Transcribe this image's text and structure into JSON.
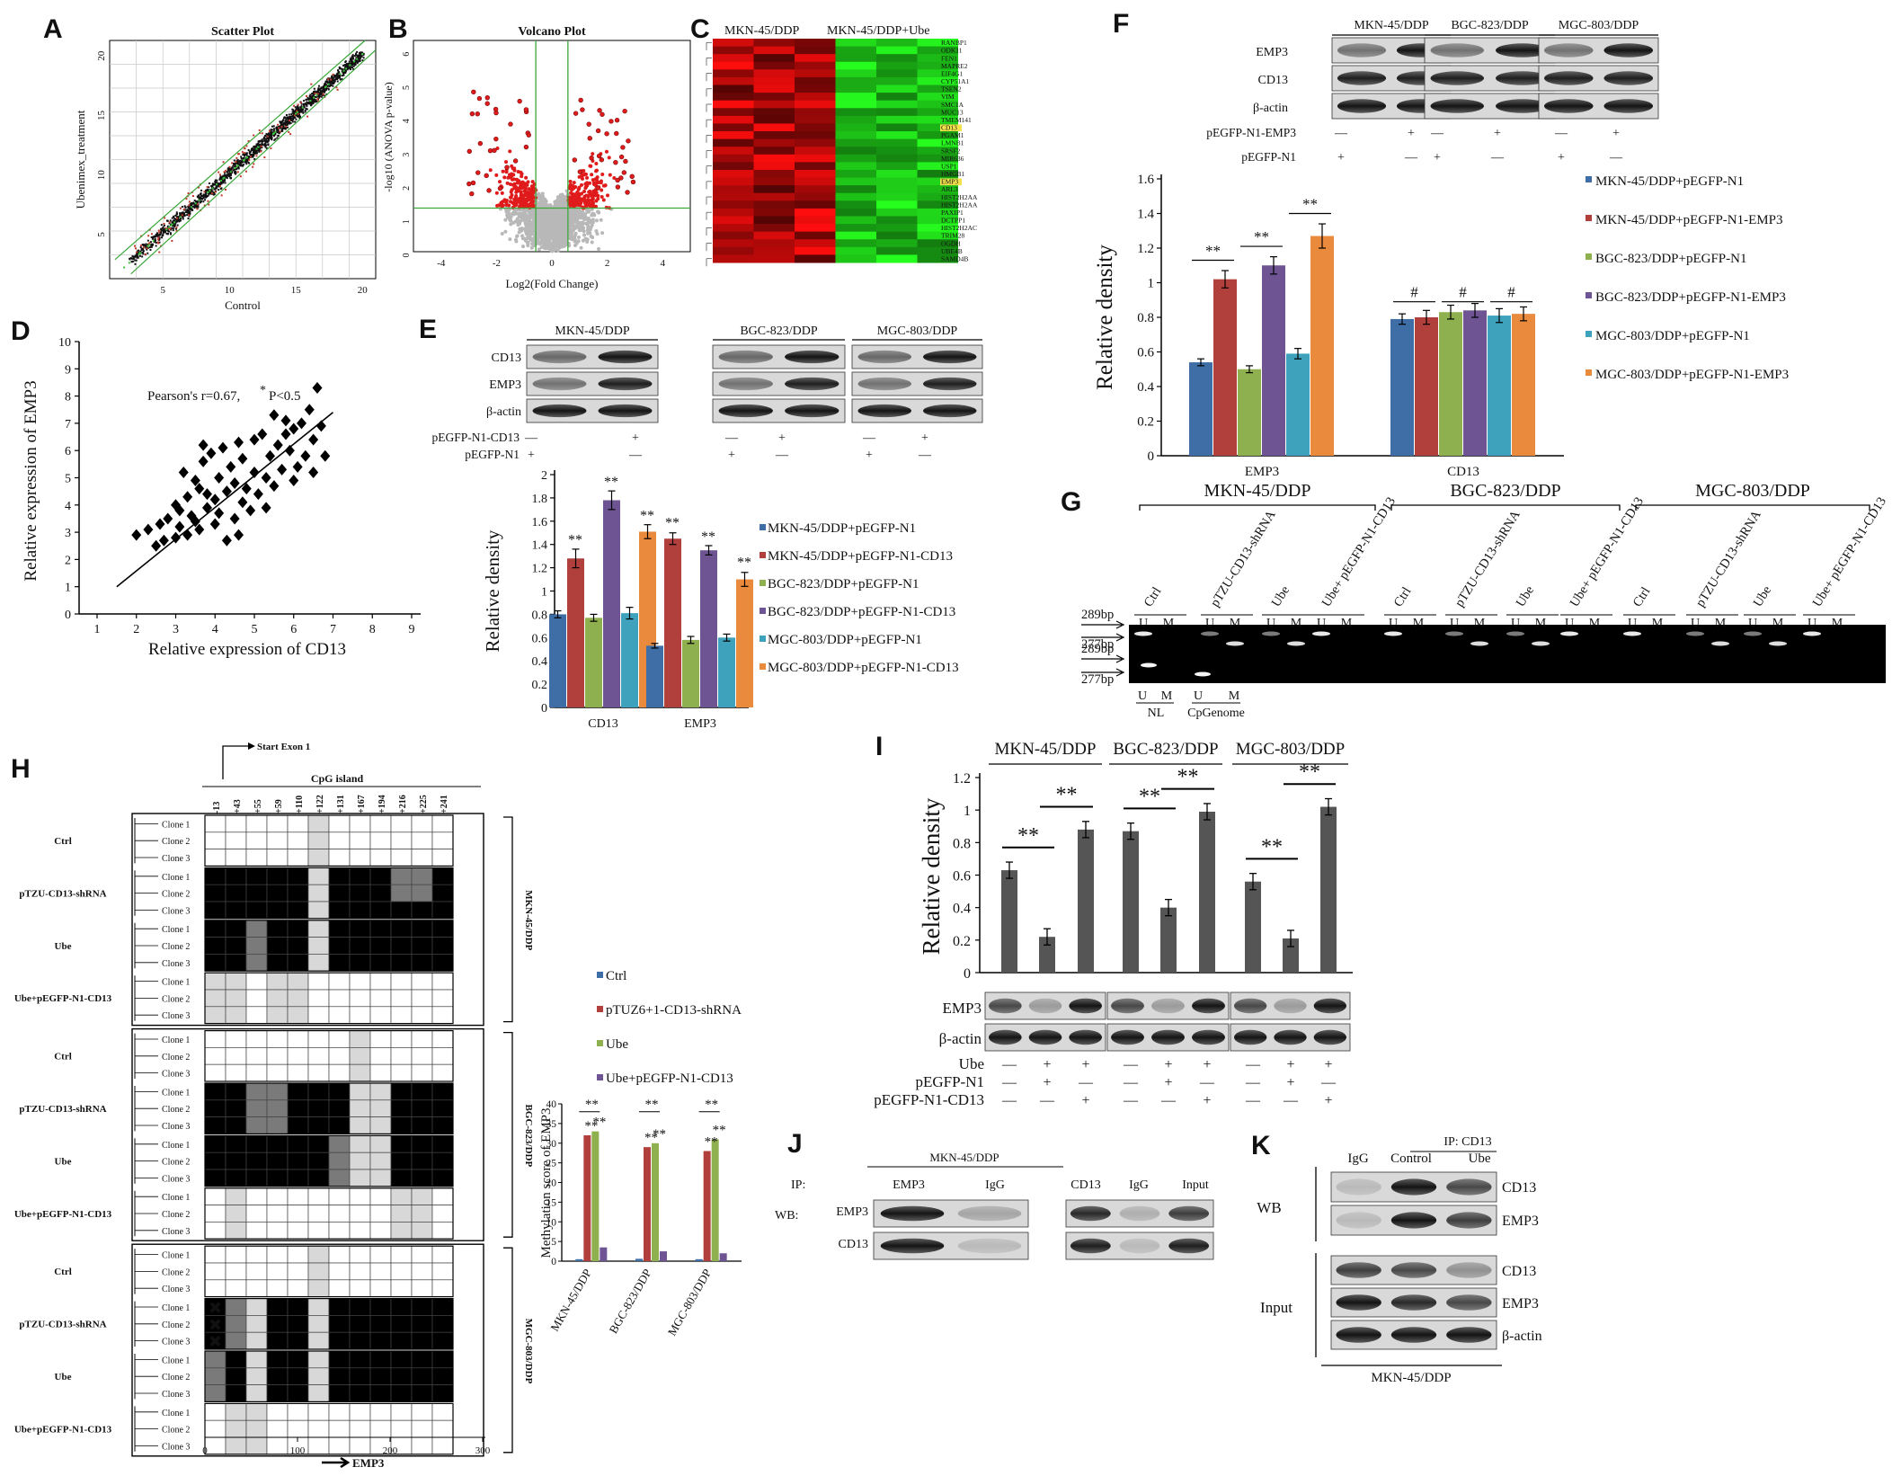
{
  "panels": {
    "A": {
      "letter": "A",
      "title": "Scatter Plot",
      "xlabel": "Control",
      "ylabel": "Ubenimex_treatment",
      "xticks": [
        "5",
        "10",
        "15",
        "20"
      ],
      "yticks": [
        "5",
        "10",
        "15",
        "20"
      ],
      "chart_data": {
        "type": "scatter",
        "xlim": [
          1,
          21
        ],
        "ylim": [
          1,
          21
        ],
        "description_points": "dense diagonal cloud along y=x with red outliers"
      }
    },
    "B": {
      "letter": "B",
      "title": "Volcano Plot",
      "xlabel": "Log2(Fold Change)",
      "ylabel": "-log10 (ANOVA p-value)",
      "xticks": [
        "-4",
        "-2",
        "0",
        "2",
        "4"
      ],
      "yticks": [
        "0",
        "1",
        "2",
        "3",
        "4",
        "5",
        "6"
      ],
      "chart_data": {
        "type": "scatter",
        "xlim": [
          -5,
          5
        ],
        "ylim": [
          0,
          6.3
        ],
        "thresholds": {
          "fc": [
            -0.58,
            0.58
          ],
          "p": 1.3
        }
      }
    },
    "C": {
      "letter": "C",
      "group1": "MKN-45/DDP",
      "group2": "MKN-45/DDP+Ube",
      "genes": [
        "RANBP1",
        "ODK11",
        "FEN1",
        "MAPRE2",
        "EIF4G1",
        "CYP51A1",
        "TSEN2",
        "VIM",
        "SMC1A",
        "MUC13",
        "TMEM141",
        "CD13",
        "PGAM1",
        "LMNB1",
        "SRSF2",
        "MIR636",
        "USP1",
        "HMGB1",
        "EMP3",
        "ARL3",
        "HIST2H2AA",
        "HIST2H2AA",
        "PAXIP1",
        "DCTPP1",
        "HIST2H2AC",
        "TRIM28",
        "OGDH",
        "UBE4B",
        "SAMD4B"
      ],
      "highlight": [
        "CD13",
        "EMP3"
      ]
    },
    "D": {
      "letter": "D",
      "annotation": "Pearson's r=0.67,",
      "annotation_star": "*",
      "annotation_p": "P<0.5",
      "xlabel": "Relative expression of  CD13",
      "ylabel": "Relative expression of  EMP3",
      "xticks": [
        "1",
        "2",
        "3",
        "4",
        "5",
        "6",
        "7",
        "8",
        "9"
      ],
      "yticks": [
        "0",
        "1",
        "2",
        "3",
        "4",
        "5",
        "6",
        "7",
        "8",
        "9",
        "10"
      ],
      "chart_data": {
        "type": "scatter",
        "xlim": [
          1,
          9
        ],
        "ylim": [
          0,
          10
        ],
        "x": [
          2.0,
          2.3,
          2.5,
          2.6,
          2.7,
          2.8,
          3.0,
          3.0,
          3.1,
          3.1,
          3.2,
          3.3,
          3.3,
          3.4,
          3.5,
          3.5,
          3.6,
          3.6,
          3.7,
          3.8,
          3.8,
          3.9,
          4.0,
          4.0,
          4.1,
          4.1,
          4.2,
          4.3,
          4.3,
          4.4,
          4.5,
          4.5,
          4.6,
          4.7,
          4.7,
          4.8,
          4.9,
          5.0,
          5.0,
          5.1,
          5.2,
          5.3,
          5.3,
          5.4,
          5.5,
          5.5,
          5.6,
          5.7,
          5.8,
          5.9,
          6.0,
          6.0,
          6.1,
          6.2,
          6.3,
          6.4,
          6.5,
          6.5,
          6.6,
          6.7,
          6.8,
          4.6,
          5.8,
          3.7
        ],
        "y": [
          2.9,
          3.1,
          2.5,
          3.3,
          2.7,
          3.5,
          4.0,
          2.8,
          3.8,
          3.2,
          5.2,
          2.9,
          4.3,
          3.6,
          4.9,
          3.4,
          4.6,
          3.1,
          5.6,
          3.9,
          4.4,
          5.9,
          4.2,
          3.3,
          5.0,
          3.7,
          6.1,
          4.5,
          2.7,
          5.4,
          3.5,
          4.8,
          6.3,
          4.1,
          5.7,
          4.6,
          3.8,
          5.2,
          6.4,
          4.4,
          6.6,
          5.0,
          3.9,
          5.8,
          7.3,
          4.7,
          6.2,
          5.3,
          7.1,
          6.0,
          4.9,
          6.8,
          5.4,
          7.0,
          5.8,
          7.5,
          6.4,
          5.2,
          8.3,
          6.9,
          5.8,
          2.9,
          6.6,
          6.2
        ],
        "fit": {
          "x": [
            1.5,
            7.0
          ],
          "y": [
            1.0,
            7.4
          ]
        }
      }
    },
    "E": {
      "letter": "E",
      "blot_groups": [
        "MKN-45/DDP",
        "BGC-823/DDP",
        "MGC-803/DDP"
      ],
      "blot_rows": [
        "CD13",
        "EMP3",
        "β-actin"
      ],
      "treat_rows": [
        {
          "label": "pEGFP-N1-CD13",
          "marks": [
            "—",
            "+",
            "—",
            "+",
            "—",
            "+"
          ]
        },
        {
          "label": "pEGFP-N1",
          "marks": [
            "+",
            "—",
            "+",
            "—",
            "+",
            "—"
          ]
        }
      ],
      "chart_data": {
        "type": "bar",
        "categories": [
          "CD13",
          "EMP3"
        ],
        "ylabel": "Relative density",
        "ylim": [
          0,
          2
        ],
        "yticks": [
          "0",
          "0.2",
          "0.4",
          "0.6",
          "0.8",
          "1",
          "1.2",
          "1.4",
          "1.6",
          "1.8",
          "2"
        ],
        "series": [
          {
            "name": "MKN-45/DDP+pEGFP-N1",
            "color": "#3f6ea6",
            "values": [
              0.8,
              0.53
            ],
            "err": [
              0.03,
              0.02
            ]
          },
          {
            "name": "MKN-45/DDP+pEGFP-N1-CD13",
            "color": "#b1403d",
            "values": [
              1.28,
              1.45
            ],
            "err": [
              0.08,
              0.05
            ]
          },
          {
            "name": "BGC-823/DDP+pEGFP-N1",
            "color": "#8fb04f",
            "values": [
              0.77,
              0.58
            ],
            "err": [
              0.03,
              0.03
            ]
          },
          {
            "name": "BGC-823/DDP+pEGFP-N1-CD13",
            "color": "#6f5494",
            "values": [
              1.78,
              1.35
            ],
            "err": [
              0.08,
              0.04
            ]
          },
          {
            "name": "MGC-803/DDP+pEGFP-N1",
            "color": "#3fa2bd",
            "values": [
              0.81,
              0.6
            ],
            "err": [
              0.05,
              0.03
            ]
          },
          {
            "name": "MGC-803/DDP+pEGFP-N1-CD13",
            "color": "#e98a3c",
            "values": [
              1.51,
              1.1
            ],
            "err": [
              0.06,
              0.06
            ]
          }
        ],
        "sig": [
          "**",
          "**"
        ]
      }
    },
    "F": {
      "letter": "F",
      "blot_groups": [
        "MKN-45/DDP",
        "BGC-823/DDP",
        "MGC-803/DDP"
      ],
      "blot_rows": [
        "EMP3",
        "CD13",
        "β-actin"
      ],
      "treat_rows": [
        {
          "label": "pEGFP-N1-EMP3",
          "marks": [
            "—",
            "+",
            "—",
            "+",
            "—",
            "+"
          ]
        },
        {
          "label": "pEGFP-N1",
          "marks": [
            "+",
            "—",
            "+",
            "—",
            "+",
            "—"
          ]
        }
      ],
      "chart_data": {
        "type": "bar",
        "categories": [
          "EMP3",
          "CD13"
        ],
        "ylabel": "Relative density",
        "ylim": [
          0,
          1.6
        ],
        "yticks": [
          "0",
          "0.2",
          "0.4",
          "0.6",
          "0.8",
          "1",
          "1.2",
          "1.4",
          "1.6"
        ],
        "series": [
          {
            "name": "MKN-45/DDP+pEGFP-N1",
            "color": "#3f6ea6",
            "values": [
              0.54,
              0.79
            ],
            "err": [
              0.02,
              0.03
            ]
          },
          {
            "name": "MKN-45/DDP+pEGFP-N1-EMP3",
            "color": "#b1403d",
            "values": [
              1.02,
              0.8
            ],
            "err": [
              0.05,
              0.04
            ]
          },
          {
            "name": "BGC-823/DDP+pEGFP-N1",
            "color": "#8fb04f",
            "values": [
              0.5,
              0.83
            ],
            "err": [
              0.02,
              0.04
            ]
          },
          {
            "name": "BGC-823/DDP+pEGFP-N1-EMP3",
            "color": "#6f5494",
            "values": [
              1.1,
              0.84
            ],
            "err": [
              0.05,
              0.04
            ]
          },
          {
            "name": "MGC-803/DDP+pEGFP-N1",
            "color": "#3fa2bd",
            "values": [
              0.59,
              0.81
            ],
            "err": [
              0.03,
              0.04
            ]
          },
          {
            "name": "MGC-803/DDP+pEGFP-N1-EMP3",
            "color": "#e98a3c",
            "values": [
              1.27,
              0.82
            ],
            "err": [
              0.07,
              0.04
            ]
          }
        ],
        "sig": [
          "**",
          "#"
        ]
      }
    },
    "G": {
      "letter": "G",
      "groups": [
        "MKN-45/DDP",
        "BGC-823/DDP",
        "MGC-803/DDP"
      ],
      "lanes": [
        "Ctrl",
        "pTZU-CD13-shRNA",
        "Ube",
        "Ube+ pEGFP-N1-CD13"
      ],
      "um": [
        "U",
        "M"
      ],
      "markers": [
        "289bp",
        "277bp",
        "289bp",
        "277bp"
      ],
      "bottom": {
        "nl": "NL",
        "cp": "CpGenome",
        "u": "U",
        "m": "M"
      }
    },
    "H": {
      "letter": "H",
      "start": "Start Exon 1",
      "cpg": "CpG island",
      "positions": [
        "-13",
        "+43",
        "+55",
        "+59",
        "+110",
        "+122",
        "+131",
        "+167",
        "+194",
        "+216",
        "+225",
        "+241"
      ],
      "treatments": [
        "Ctrl",
        "pTZU-CD13-shRNA",
        "Ube",
        "Ube+pEGFP-N1-CD13"
      ],
      "clones": [
        "Clone 1",
        "Clone 2",
        "Clone 3"
      ],
      "lines": [
        "MKN-45/DDP",
        "BGC-823/DDP",
        "MGC-803/DDP"
      ],
      "xticks": [
        "0",
        "100",
        "200",
        "300"
      ],
      "gene": "EMP3",
      "chart_data": {
        "type": "bar",
        "categories": [
          "MKN-45/DDP",
          "BGC-823/DDP",
          "MGC-803/DDP"
        ],
        "ylabel": "Methylation score of EMP3",
        "ylim": [
          0,
          40
        ],
        "yticks": [
          "0",
          "5",
          "10",
          "15",
          "20",
          "25",
          "30",
          "35",
          "40"
        ],
        "series": [
          {
            "name": "Ctrl",
            "color": "#3f6ea6",
            "values": [
              0.5,
              0.6,
              0.5
            ]
          },
          {
            "name": "pTUZ6+1-CD13-shRNA",
            "color": "#b1403d",
            "values": [
              32,
              29,
              28
            ]
          },
          {
            "name": "Ube",
            "color": "#8fb04f",
            "values": [
              33,
              30,
              31
            ]
          },
          {
            "name": "Ube+pEGFP-N1-CD13",
            "color": "#6f5494",
            "values": [
              3.5,
              2.5,
              2
            ]
          }
        ],
        "sig": "**"
      }
    },
    "I": {
      "letter": "I",
      "groups": [
        "MKN-45/DDP",
        "BGC-823/DDP",
        "MGC-803/DDP"
      ],
      "blot_rows": [
        "EMP3",
        "β-actin"
      ],
      "treat_rows": [
        {
          "label": "Ube",
          "marks": [
            "—",
            "+",
            "+",
            "—",
            "+",
            "+",
            "—",
            "+",
            "+"
          ]
        },
        {
          "label": "pEGFP-N1",
          "marks": [
            "—",
            "+",
            "—",
            "—",
            "+",
            "—",
            "—",
            "+",
            "—"
          ]
        },
        {
          "label": "pEGFP-N1-CD13",
          "marks": [
            "—",
            "—",
            "+",
            "—",
            "—",
            "+",
            "—",
            "—",
            "+"
          ]
        }
      ],
      "chart_data": {
        "type": "bar",
        "ylabel": "Relative density",
        "ylim": [
          0,
          1.2
        ],
        "yticks": [
          "0",
          "0.2",
          "0.4",
          "0.6",
          "0.8",
          "1",
          "1.2"
        ],
        "values": [
          0.63,
          0.22,
          0.88,
          0.87,
          0.4,
          0.99,
          0.56,
          0.21,
          1.02
        ],
        "err": [
          0.05,
          0.05,
          0.05,
          0.05,
          0.05,
          0.05,
          0.05,
          0.05,
          0.05
        ],
        "sig": "**"
      }
    },
    "J": {
      "letter": "J",
      "title": "MKN-45/DDP",
      "ip": "IP:",
      "wb": "WB:",
      "ip_lanes": [
        "EMP3",
        "IgG",
        "CD13",
        "IgG",
        "Input"
      ],
      "rows": [
        "EMP3",
        "CD13"
      ]
    },
    "K": {
      "letter": "K",
      "ip": "IP: CD13",
      "lanes": [
        "IgG",
        "Control",
        "Ube"
      ],
      "wb": "WB",
      "input": "Input",
      "wb_rows": [
        "CD13",
        "EMP3"
      ],
      "input_rows": [
        "CD13",
        "EMP3",
        "β-actin"
      ],
      "cell": "MKN-45/DDP"
    }
  }
}
